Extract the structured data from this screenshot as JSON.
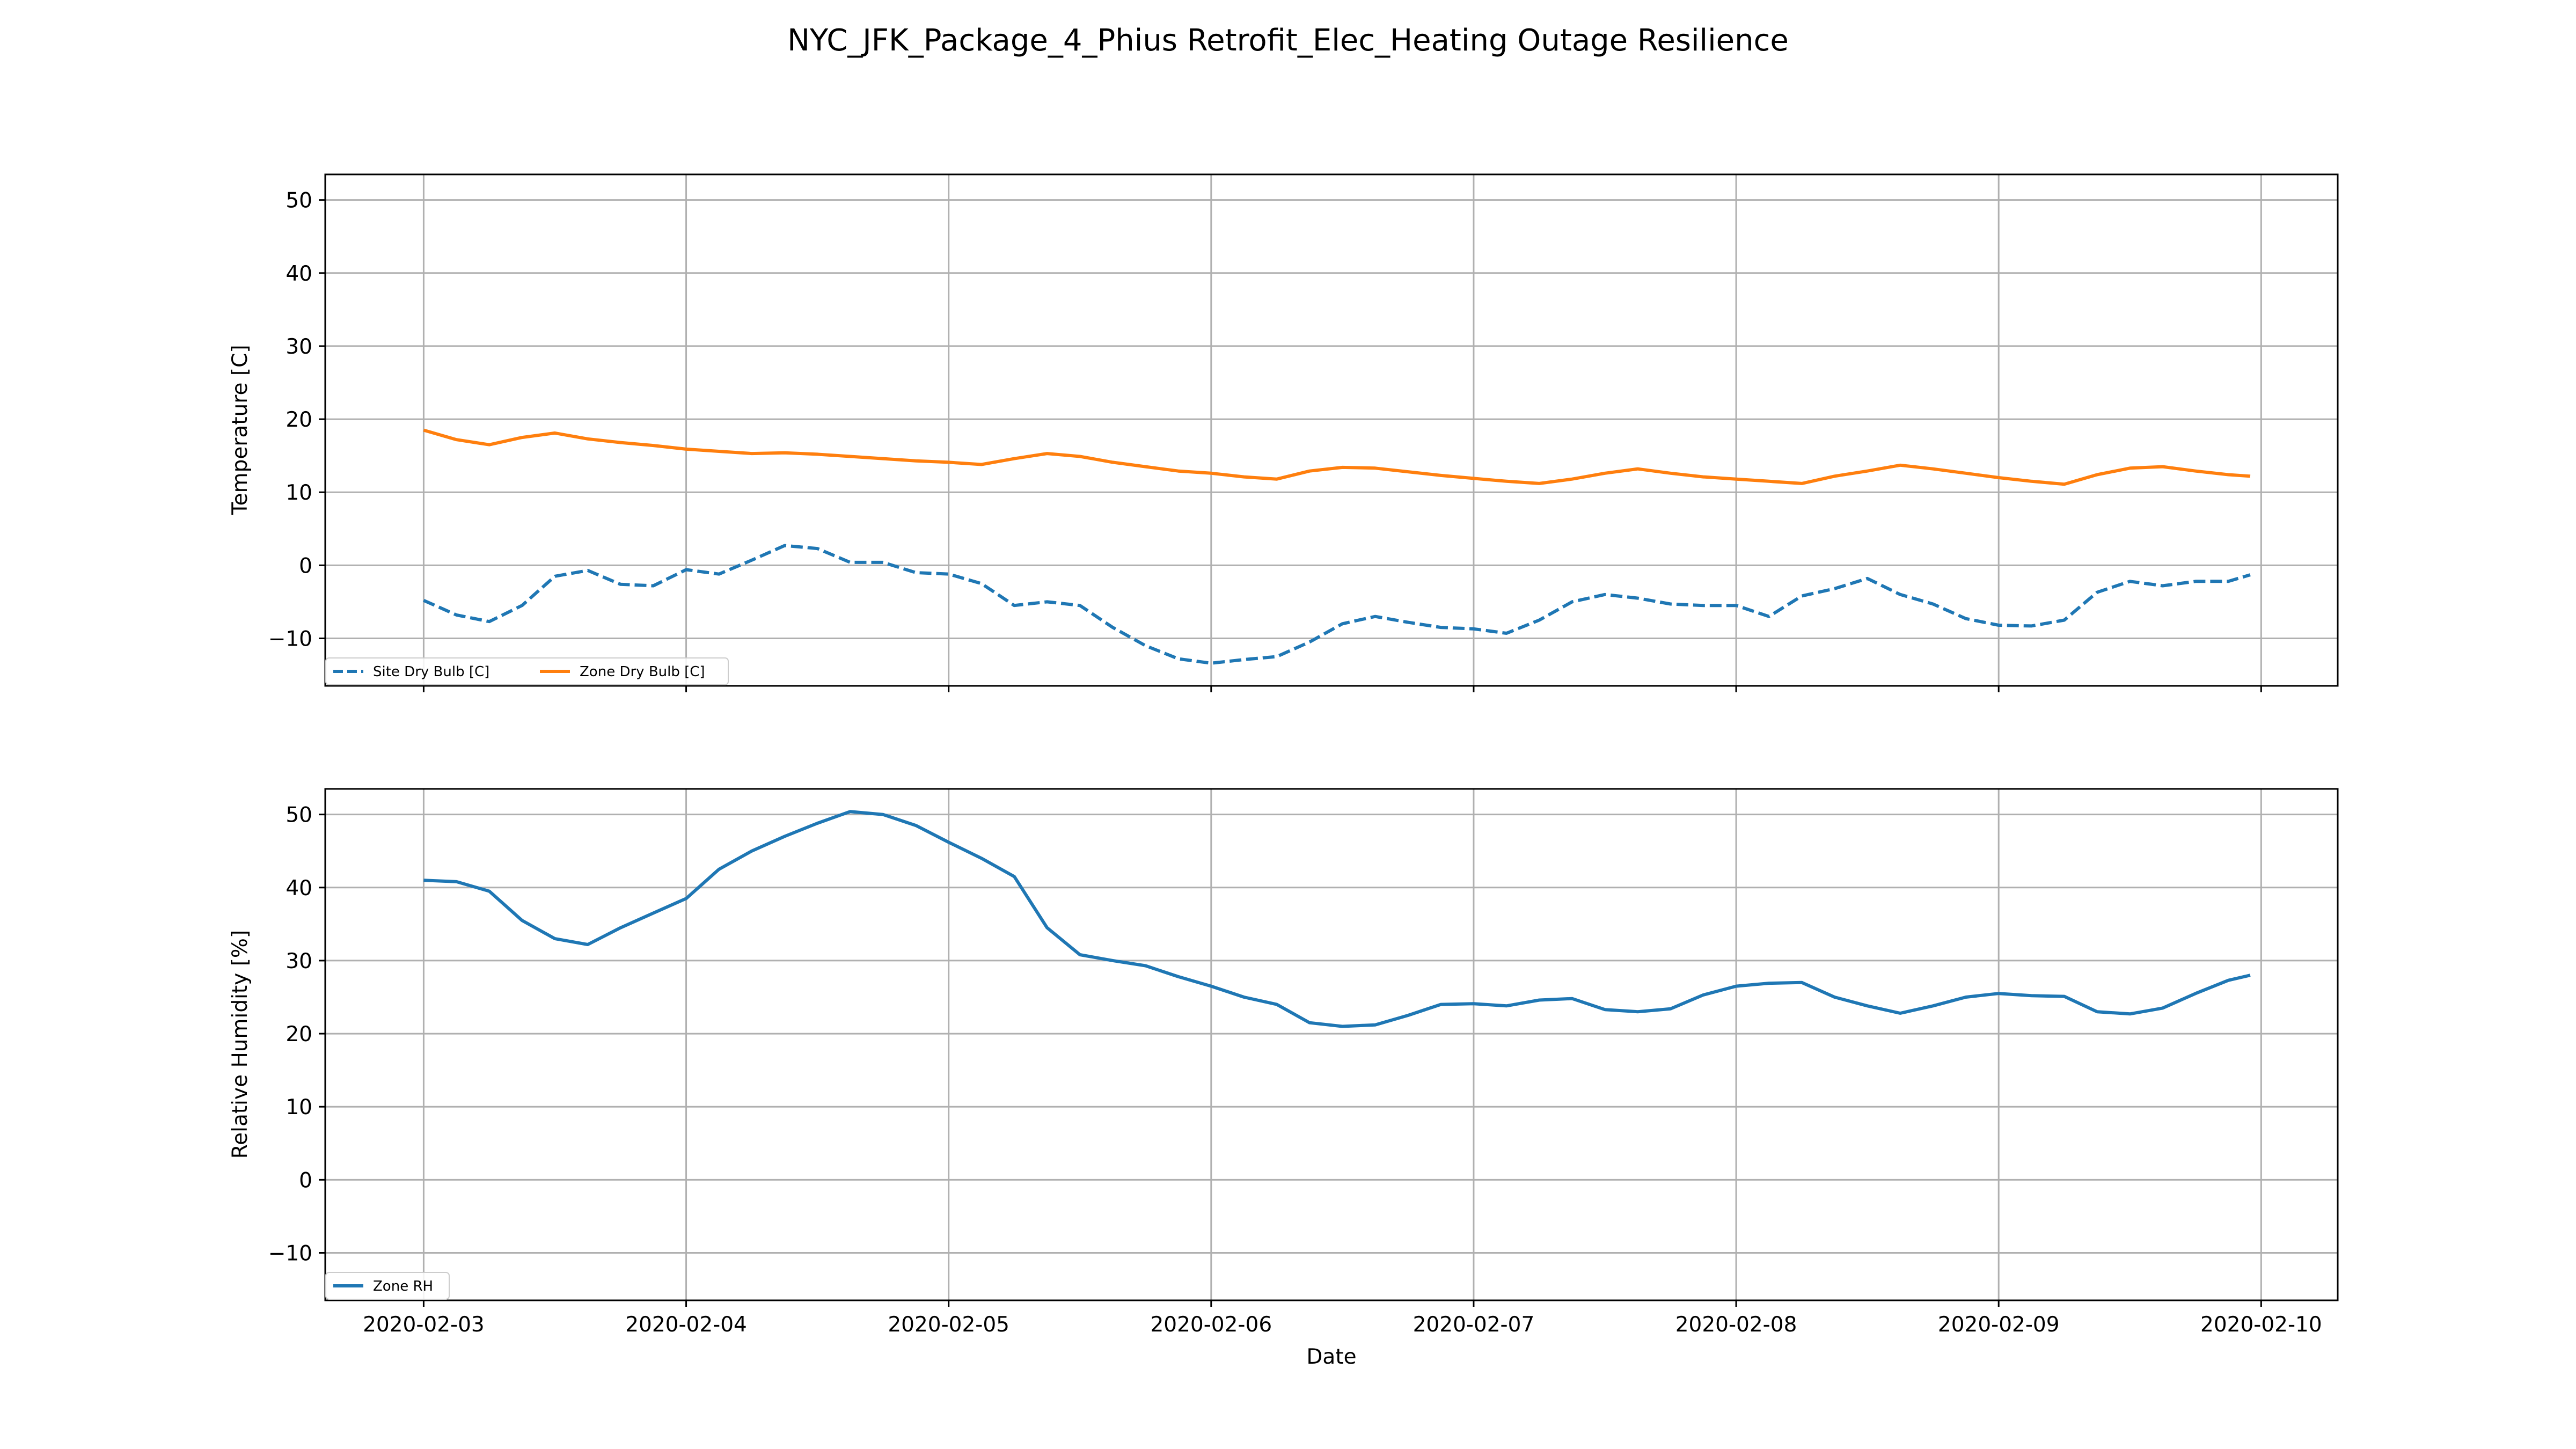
{
  "figure": {
    "title": "NYC_JFK_Package_4_Phius Retrofit_Elec_Heating Outage Resilience"
  },
  "colors": {
    "blue": "#1f77b4",
    "orange": "#ff7f0e",
    "grid": "#b0b0b0"
  },
  "chart_data": [
    {
      "type": "line",
      "title": "",
      "xlabel": "",
      "ylabel": "Temperature [C]",
      "x_type": "date",
      "xlim": [
        "2020-02-02 15:00",
        "2020-02-10 07:00"
      ],
      "ylim": [
        -16.5,
        53.5
      ],
      "yticks": [
        -10,
        0,
        10,
        20,
        30,
        40,
        50
      ],
      "xticks": [
        "2020-02-03",
        "2020-02-04",
        "2020-02-05",
        "2020-02-06",
        "2020-02-07",
        "2020-02-08",
        "2020-02-09",
        "2020-02-10"
      ],
      "grid": true,
      "legend": {
        "position": "bottom-left",
        "ncol": 2
      },
      "series": [
        {
          "name": "Site Dry Bulb [C]",
          "color": "#1f77b4",
          "style": "dashed",
          "x": [
            "2020-02-03 00:00",
            "2020-02-03 03:00",
            "2020-02-03 06:00",
            "2020-02-03 09:00",
            "2020-02-03 12:00",
            "2020-02-03 15:00",
            "2020-02-03 18:00",
            "2020-02-03 21:00",
            "2020-02-04 00:00",
            "2020-02-04 03:00",
            "2020-02-04 06:00",
            "2020-02-04 09:00",
            "2020-02-04 12:00",
            "2020-02-04 15:00",
            "2020-02-04 18:00",
            "2020-02-04 21:00",
            "2020-02-05 00:00",
            "2020-02-05 03:00",
            "2020-02-05 06:00",
            "2020-02-05 09:00",
            "2020-02-05 12:00",
            "2020-02-05 15:00",
            "2020-02-05 18:00",
            "2020-02-05 21:00",
            "2020-02-06 00:00",
            "2020-02-06 03:00",
            "2020-02-06 06:00",
            "2020-02-06 09:00",
            "2020-02-06 12:00",
            "2020-02-06 15:00",
            "2020-02-06 18:00",
            "2020-02-06 21:00",
            "2020-02-07 00:00",
            "2020-02-07 03:00",
            "2020-02-07 06:00",
            "2020-02-07 09:00",
            "2020-02-07 12:00",
            "2020-02-07 15:00",
            "2020-02-07 18:00",
            "2020-02-07 21:00",
            "2020-02-08 00:00",
            "2020-02-08 03:00",
            "2020-02-08 06:00",
            "2020-02-08 09:00",
            "2020-02-08 12:00",
            "2020-02-08 15:00",
            "2020-02-08 18:00",
            "2020-02-08 21:00",
            "2020-02-09 00:00",
            "2020-02-09 03:00",
            "2020-02-09 06:00",
            "2020-02-09 09:00",
            "2020-02-09 12:00",
            "2020-02-09 15:00",
            "2020-02-09 18:00",
            "2020-02-09 21:00",
            "2020-02-09 23:00"
          ],
          "values": [
            -4.8,
            -6.8,
            -7.7,
            -5.5,
            -1.5,
            -0.7,
            -2.6,
            -2.8,
            -0.6,
            -1.2,
            0.7,
            2.7,
            2.3,
            0.4,
            0.4,
            -1.0,
            -1.2,
            -2.5,
            -5.5,
            -5.0,
            -5.5,
            -8.5,
            -11.0,
            -12.8,
            -13.4,
            -12.9,
            -12.5,
            -10.5,
            -8.0,
            -7.0,
            -7.8,
            -8.5,
            -8.7,
            -9.3,
            -7.5,
            -5.0,
            -4.0,
            -4.5,
            -5.3,
            -5.5,
            -5.5,
            -7.0,
            -4.2,
            -3.2,
            -1.8,
            -4.0,
            -5.3,
            -7.3,
            -8.2,
            -8.3,
            -7.5,
            -3.7,
            -2.2,
            -2.8,
            -2.2,
            -2.2,
            -1.3
          ]
        },
        {
          "name": "Zone Dry Bulb [C]",
          "color": "#ff7f0e",
          "style": "solid",
          "x": [
            "2020-02-03 00:00",
            "2020-02-03 03:00",
            "2020-02-03 06:00",
            "2020-02-03 09:00",
            "2020-02-03 12:00",
            "2020-02-03 15:00",
            "2020-02-03 18:00",
            "2020-02-03 21:00",
            "2020-02-04 00:00",
            "2020-02-04 03:00",
            "2020-02-04 06:00",
            "2020-02-04 09:00",
            "2020-02-04 12:00",
            "2020-02-04 15:00",
            "2020-02-04 18:00",
            "2020-02-04 21:00",
            "2020-02-05 00:00",
            "2020-02-05 03:00",
            "2020-02-05 06:00",
            "2020-02-05 09:00",
            "2020-02-05 12:00",
            "2020-02-05 15:00",
            "2020-02-05 18:00",
            "2020-02-05 21:00",
            "2020-02-06 00:00",
            "2020-02-06 03:00",
            "2020-02-06 06:00",
            "2020-02-06 09:00",
            "2020-02-06 12:00",
            "2020-02-06 15:00",
            "2020-02-06 18:00",
            "2020-02-06 21:00",
            "2020-02-07 00:00",
            "2020-02-07 03:00",
            "2020-02-07 06:00",
            "2020-02-07 09:00",
            "2020-02-07 12:00",
            "2020-02-07 15:00",
            "2020-02-07 18:00",
            "2020-02-07 21:00",
            "2020-02-08 00:00",
            "2020-02-08 03:00",
            "2020-02-08 06:00",
            "2020-02-08 09:00",
            "2020-02-08 12:00",
            "2020-02-08 15:00",
            "2020-02-08 18:00",
            "2020-02-08 21:00",
            "2020-02-09 00:00",
            "2020-02-09 03:00",
            "2020-02-09 06:00",
            "2020-02-09 09:00",
            "2020-02-09 12:00",
            "2020-02-09 15:00",
            "2020-02-09 18:00",
            "2020-02-09 21:00",
            "2020-02-09 23:00"
          ],
          "values": [
            18.5,
            17.2,
            16.5,
            17.5,
            18.1,
            17.3,
            16.8,
            16.4,
            15.9,
            15.6,
            15.3,
            15.4,
            15.2,
            14.9,
            14.6,
            14.3,
            14.1,
            13.8,
            14.6,
            15.3,
            14.9,
            14.1,
            13.5,
            12.9,
            12.6,
            12.1,
            11.8,
            12.9,
            13.4,
            13.3,
            12.8,
            12.3,
            11.9,
            11.5,
            11.2,
            11.8,
            12.6,
            13.2,
            12.6,
            12.1,
            11.8,
            11.5,
            11.2,
            12.2,
            12.9,
            13.7,
            13.2,
            12.6,
            12.0,
            11.5,
            11.1,
            12.4,
            13.3,
            13.5,
            12.9,
            12.4,
            12.2
          ]
        }
      ]
    },
    {
      "type": "line",
      "title": "",
      "xlabel": "Date",
      "ylabel": "Relative Humidity [%]",
      "x_type": "date",
      "xlim": [
        "2020-02-02 15:00",
        "2020-02-10 07:00"
      ],
      "ylim": [
        -16.5,
        53.5
      ],
      "yticks": [
        -10,
        0,
        10,
        20,
        30,
        40,
        50
      ],
      "xticks": [
        "2020-02-03",
        "2020-02-04",
        "2020-02-05",
        "2020-02-06",
        "2020-02-07",
        "2020-02-08",
        "2020-02-09",
        "2020-02-10"
      ],
      "grid": true,
      "legend": {
        "position": "bottom-left",
        "ncol": 1
      },
      "series": [
        {
          "name": "Zone RH",
          "color": "#1f77b4",
          "style": "solid",
          "x": [
            "2020-02-03 00:00",
            "2020-02-03 03:00",
            "2020-02-03 06:00",
            "2020-02-03 09:00",
            "2020-02-03 12:00",
            "2020-02-03 15:00",
            "2020-02-03 18:00",
            "2020-02-03 21:00",
            "2020-02-04 00:00",
            "2020-02-04 03:00",
            "2020-02-04 06:00",
            "2020-02-04 09:00",
            "2020-02-04 12:00",
            "2020-02-04 15:00",
            "2020-02-04 18:00",
            "2020-02-04 21:00",
            "2020-02-05 00:00",
            "2020-02-05 03:00",
            "2020-02-05 06:00",
            "2020-02-05 09:00",
            "2020-02-05 12:00",
            "2020-02-05 15:00",
            "2020-02-05 18:00",
            "2020-02-05 21:00",
            "2020-02-06 00:00",
            "2020-02-06 03:00",
            "2020-02-06 06:00",
            "2020-02-06 09:00",
            "2020-02-06 12:00",
            "2020-02-06 15:00",
            "2020-02-06 18:00",
            "2020-02-06 21:00",
            "2020-02-07 00:00",
            "2020-02-07 03:00",
            "2020-02-07 06:00",
            "2020-02-07 09:00",
            "2020-02-07 12:00",
            "2020-02-07 15:00",
            "2020-02-07 18:00",
            "2020-02-07 21:00",
            "2020-02-08 00:00",
            "2020-02-08 03:00",
            "2020-02-08 06:00",
            "2020-02-08 09:00",
            "2020-02-08 12:00",
            "2020-02-08 15:00",
            "2020-02-08 18:00",
            "2020-02-08 21:00",
            "2020-02-09 00:00",
            "2020-02-09 03:00",
            "2020-02-09 06:00",
            "2020-02-09 09:00",
            "2020-02-09 12:00",
            "2020-02-09 15:00",
            "2020-02-09 18:00",
            "2020-02-09 21:00",
            "2020-02-09 23:00"
          ],
          "values": [
            41.0,
            40.8,
            39.5,
            35.5,
            33.0,
            32.2,
            34.5,
            36.5,
            38.5,
            42.5,
            45.0,
            47.0,
            48.8,
            50.4,
            50.0,
            48.5,
            46.2,
            44.0,
            41.5,
            34.5,
            30.8,
            30.0,
            29.3,
            27.8,
            26.5,
            25.0,
            24.0,
            21.5,
            21.0,
            21.2,
            22.5,
            24.0,
            24.1,
            23.8,
            24.6,
            24.8,
            23.3,
            23.0,
            23.4,
            25.3,
            26.5,
            26.9,
            27.0,
            25.0,
            23.8,
            22.8,
            23.8,
            25.0,
            25.5,
            25.2,
            25.1,
            23.0,
            22.7,
            23.5,
            25.5,
            27.3,
            28.0
          ]
        }
      ]
    }
  ]
}
